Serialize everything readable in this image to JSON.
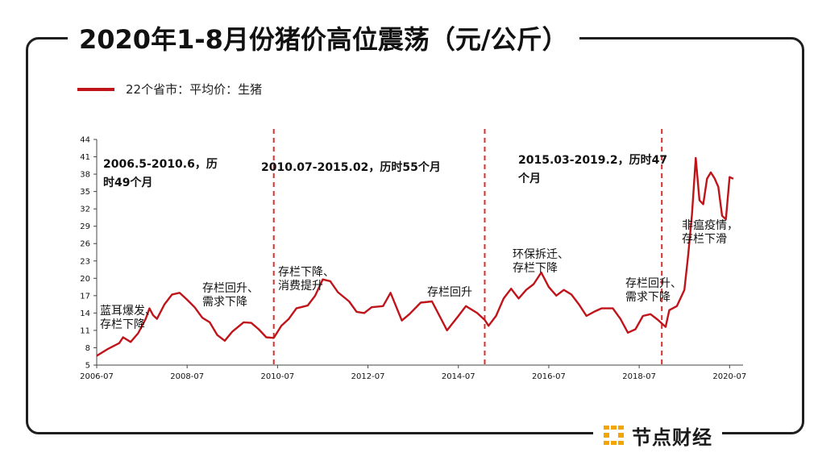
{
  "title": "2020年1-8月份猪价高位震荡（元/公斤）",
  "brand": {
    "name": "节点财经",
    "logo_color": "#f0a500"
  },
  "colors": {
    "series": "#c0141b",
    "divider": "#d9302a",
    "frame": "#1f1f1f"
  },
  "chart_data": {
    "type": "line",
    "title": "2020年1-8月份猪价高位震荡（元/公斤）",
    "xlabel": "",
    "ylabel": "",
    "xlim": [
      "2006-07",
      "2020-10"
    ],
    "ylim": [
      5,
      44
    ],
    "yticks": [
      5,
      8,
      11,
      14,
      17,
      20,
      23,
      26,
      29,
      32,
      35,
      38,
      41,
      44
    ],
    "xticks": [
      "2006-07",
      "2008-07",
      "2010-07",
      "2012-07",
      "2014-07",
      "2016-07",
      "2018-07",
      "2020-07"
    ],
    "grid": false,
    "legend_position": "top-left",
    "series": [
      {
        "name": "22个省市：平均价：生猪",
        "color": "#c0141b",
        "points": [
          [
            "2006-07",
            6.6
          ],
          [
            "2006-10",
            7.8
          ],
          [
            "2007-01",
            8.8
          ],
          [
            "2007-02",
            9.8
          ],
          [
            "2007-04",
            9.0
          ],
          [
            "2007-06",
            10.5
          ],
          [
            "2007-08",
            13.0
          ],
          [
            "2007-09",
            14.8
          ],
          [
            "2007-10",
            13.6
          ],
          [
            "2007-11",
            13.0
          ],
          [
            "2008-01",
            15.5
          ],
          [
            "2008-03",
            17.2
          ],
          [
            "2008-05",
            17.5
          ],
          [
            "2008-07",
            16.3
          ],
          [
            "2008-09",
            15.0
          ],
          [
            "2008-11",
            13.2
          ],
          [
            "2009-01",
            12.4
          ],
          [
            "2009-03",
            10.2
          ],
          [
            "2009-05",
            9.2
          ],
          [
            "2009-07",
            10.8
          ],
          [
            "2009-10",
            12.4
          ],
          [
            "2009-12",
            12.3
          ],
          [
            "2010-02",
            11.2
          ],
          [
            "2010-04",
            9.8
          ],
          [
            "2010-06",
            9.7
          ],
          [
            "2010-08",
            11.8
          ],
          [
            "2010-10",
            13.0
          ],
          [
            "2010-12",
            14.8
          ],
          [
            "2011-03",
            15.3
          ],
          [
            "2011-05",
            17.0
          ],
          [
            "2011-07",
            19.8
          ],
          [
            "2011-09",
            19.5
          ],
          [
            "2011-11",
            17.6
          ],
          [
            "2012-02",
            16.0
          ],
          [
            "2012-04",
            14.2
          ],
          [
            "2012-06",
            14.0
          ],
          [
            "2012-08",
            15.0
          ],
          [
            "2012-11",
            15.2
          ],
          [
            "2013-01",
            17.5
          ],
          [
            "2013-04",
            12.7
          ],
          [
            "2013-06",
            13.8
          ],
          [
            "2013-09",
            15.8
          ],
          [
            "2013-12",
            16.0
          ],
          [
            "2014-02",
            13.5
          ],
          [
            "2014-04",
            11.0
          ],
          [
            "2014-07",
            13.5
          ],
          [
            "2014-09",
            15.2
          ],
          [
            "2014-12",
            14.0
          ],
          [
            "2015-02",
            12.8
          ],
          [
            "2015-03",
            11.8
          ],
          [
            "2015-05",
            13.5
          ],
          [
            "2015-07",
            16.5
          ],
          [
            "2015-09",
            18.2
          ],
          [
            "2015-11",
            16.5
          ],
          [
            "2016-01",
            18.0
          ],
          [
            "2016-03",
            19.0
          ],
          [
            "2016-05",
            21.0
          ],
          [
            "2016-07",
            18.5
          ],
          [
            "2016-09",
            17.0
          ],
          [
            "2016-11",
            18.0
          ],
          [
            "2017-01",
            17.2
          ],
          [
            "2017-03",
            15.5
          ],
          [
            "2017-05",
            13.5
          ],
          [
            "2017-07",
            14.2
          ],
          [
            "2017-09",
            14.8
          ],
          [
            "2017-12",
            14.8
          ],
          [
            "2018-02",
            13.0
          ],
          [
            "2018-04",
            10.6
          ],
          [
            "2018-06",
            11.2
          ],
          [
            "2018-08",
            13.5
          ],
          [
            "2018-10",
            13.8
          ],
          [
            "2018-12",
            12.8
          ],
          [
            "2019-02",
            11.6
          ],
          [
            "2019-03",
            14.5
          ],
          [
            "2019-05",
            15.2
          ],
          [
            "2019-07",
            18.0
          ],
          [
            "2019-08",
            24.0
          ],
          [
            "2019-09",
            31.0
          ],
          [
            "2019-10",
            40.8
          ],
          [
            "2019-11",
            33.5
          ],
          [
            "2019-12",
            32.8
          ],
          [
            "2020-01",
            37.2
          ],
          [
            "2020-02",
            38.3
          ],
          [
            "2020-03",
            37.3
          ],
          [
            "2020-04",
            35.8
          ],
          [
            "2020-05",
            30.8
          ],
          [
            "2020-06",
            30.2
          ],
          [
            "2020-07",
            37.5
          ],
          [
            "2020-08",
            37.2
          ]
        ]
      }
    ],
    "dividers": [
      "2010-06",
      "2015-02",
      "2019-01"
    ],
    "period_labels": [
      {
        "line1": "2006.5-2010.6，历",
        "line2": "时49个月"
      },
      {
        "line1": "2010.07-2015.02，历时55个月",
        "line2": ""
      },
      {
        "line1": "2015.03-2019.2，历时47",
        "line2": "个月"
      }
    ],
    "annotations": [
      {
        "line1": "蓝耳爆发、",
        "line2": "存栏下降"
      },
      {
        "line1": "存栏回升、",
        "line2": "需求下降"
      },
      {
        "line1": "存栏下降、",
        "line2": "消费提升"
      },
      {
        "line1": "存栏回升",
        "line2": ""
      },
      {
        "line1": "环保拆迁、",
        "line2": "存栏下降"
      },
      {
        "line1": "存栏回升、",
        "line2": "需求下降"
      },
      {
        "line1": "非瘟疫情，",
        "line2": "存栏下滑"
      }
    ]
  }
}
